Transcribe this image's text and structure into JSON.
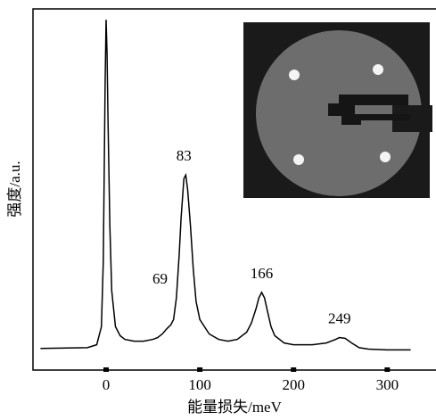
{
  "chart_data": {
    "type": "line",
    "x_label": "能量损失/meV",
    "y_label": "强度/a.u.",
    "x": [
      -70,
      -20,
      -10,
      -5,
      -3,
      -2,
      -1,
      0,
      1,
      2,
      4,
      6,
      10,
      15,
      20,
      30,
      40,
      50,
      55,
      60,
      65,
      69,
      72,
      75,
      78,
      80,
      83,
      85,
      87,
      90,
      93,
      96,
      100,
      110,
      120,
      130,
      140,
      150,
      155,
      160,
      163,
      166,
      169,
      172,
      176,
      180,
      190,
      200,
      220,
      235,
      245,
      249,
      255,
      262,
      270,
      280,
      300,
      325
    ],
    "values": [
      6,
      6.2,
      7,
      12,
      30,
      55,
      80,
      97,
      88,
      70,
      40,
      22,
      12,
      9.5,
      8.5,
      8,
      8,
      8.5,
      9,
      10,
      11.5,
      12.5,
      14,
      20,
      32,
      42,
      53,
      54,
      50,
      40,
      28,
      19,
      14,
      10,
      8.5,
      8,
      8.5,
      10.5,
      13,
      17,
      20,
      21.5,
      20,
      16.5,
      12,
      9.5,
      7.5,
      7,
      7,
      7.5,
      8.5,
      9,
      8.8,
      7.5,
      6.2,
      5.8,
      5.6,
      5.6
    ],
    "color": "#000000",
    "xlim": [
      -78,
      352
    ],
    "ylim": [
      0,
      100
    ],
    "xticks": [
      0,
      100,
      200,
      300
    ],
    "annotations": [
      69,
      83,
      166,
      249
    ]
  }
}
